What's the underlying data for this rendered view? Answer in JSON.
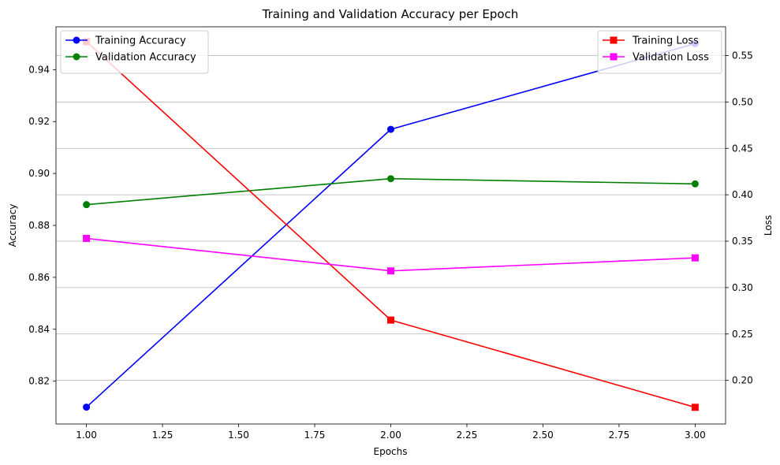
{
  "chart_data": {
    "type": "line",
    "title": "Training and Validation Accuracy per Epoch",
    "xlabel": "Epochs",
    "ylabel_left": "Accuracy",
    "ylabel_right": "Loss",
    "x": [
      1.0,
      2.0,
      3.0
    ],
    "xlim": [
      0.9,
      3.1
    ],
    "x_ticks": [
      "1.00",
      "1.25",
      "1.50",
      "1.75",
      "2.00",
      "2.25",
      "2.50",
      "2.75",
      "3.00"
    ],
    "ylim_left": [
      0.8035,
      0.9565
    ],
    "y_ticks_left": [
      "0.82",
      "0.84",
      "0.86",
      "0.88",
      "0.90",
      "0.92",
      "0.94"
    ],
    "ylim_right": [
      0.153,
      0.581
    ],
    "y_ticks_right": [
      "0.20",
      "0.25",
      "0.30",
      "0.35",
      "0.40",
      "0.45",
      "0.50",
      "0.55"
    ],
    "grid": "y-right",
    "left_series": [
      {
        "name": "Training Accuracy",
        "values": [
          0.81,
          0.917,
          0.95
        ],
        "color": "#0000ff",
        "marker": "circle"
      },
      {
        "name": "Validation Accuracy",
        "values": [
          0.888,
          0.898,
          0.896
        ],
        "color": "#008000",
        "marker": "circle"
      }
    ],
    "right_series": [
      {
        "name": "Training Loss",
        "values": [
          0.565,
          0.265,
          0.171
        ],
        "color": "#ff0000",
        "marker": "square"
      },
      {
        "name": "Validation Loss",
        "values": [
          0.353,
          0.318,
          0.332
        ],
        "color": "#ff00ff",
        "marker": "square"
      }
    ],
    "legend_left_placement": "top-left",
    "legend_right_placement": "top-right"
  }
}
